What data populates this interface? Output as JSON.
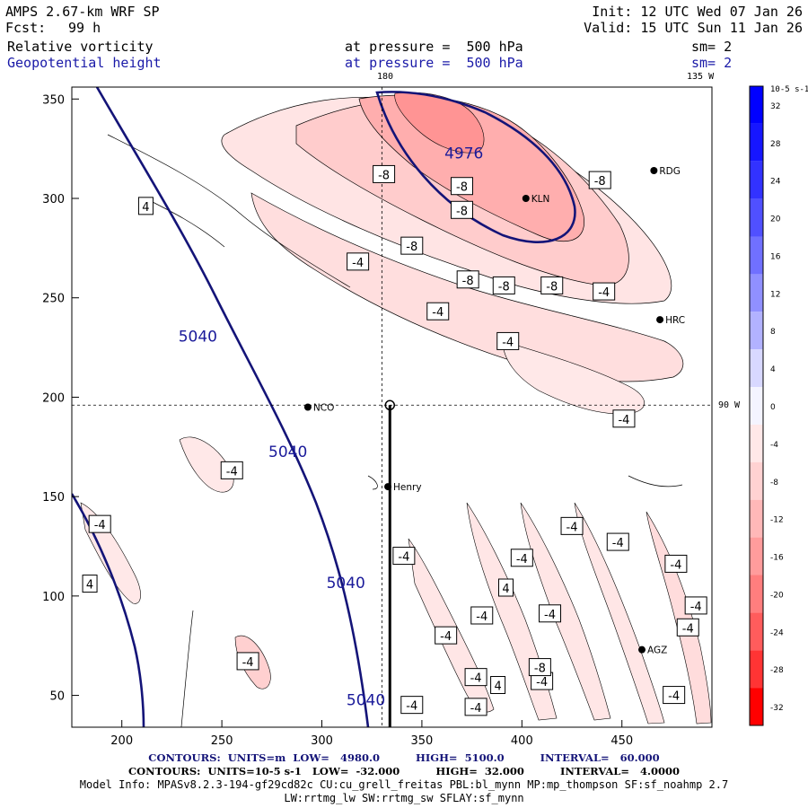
{
  "header": {
    "title": "AMPS 2.67-km WRF SP",
    "init": "Init: 12 UTC Wed 07 Jan 26",
    "fcst_label": "Fcst:",
    "fcst_value": "99 h",
    "valid": "Valid: 15 UTC Sun 11 Jan 26",
    "field1": "Relative vorticity",
    "field1_level": "at pressure =  500 hPa",
    "field1_sm": "sm= 2",
    "field2": "Geopotential height",
    "field2_level": "at pressure =  500 hPa",
    "field2_sm": "sm= 2"
  },
  "map_labels": {
    "lon_180": "180",
    "lon_135w": "135 W",
    "lat_90w": "90 W"
  },
  "stations": [
    {
      "name": "RDG",
      "x": 466,
      "y": 314
    },
    {
      "name": "KLN",
      "x": 402,
      "y": 300
    },
    {
      "name": "HRC",
      "x": 469,
      "y": 239
    },
    {
      "name": "NCO",
      "x": 293,
      "y": 195
    },
    {
      "name": "Henry",
      "x": 333,
      "y": 155
    },
    {
      "name": "AGZ",
      "x": 460,
      "y": 73
    }
  ],
  "colorbar": {
    "unit": "10-5 s-1",
    "levels": [
      32,
      28,
      24,
      20,
      16,
      12,
      8,
      4,
      0,
      -4,
      -8,
      -12,
      -16,
      -20,
      -24,
      -28,
      -32
    ],
    "colors": [
      "#0000ff",
      "#1616ff",
      "#3232ff",
      "#5050ff",
      "#7070ff",
      "#9090ff",
      "#b2b2ff",
      "#d8d8ff",
      "#f4f4ff",
      "#ffe8e8",
      "#ffd2d2",
      "#ffb8b8",
      "#ff9c9c",
      "#ff7e7e",
      "#ff5c5c",
      "#ff3434",
      "#ff0000"
    ]
  },
  "chart_data": {
    "type": "contour",
    "xlim": [
      175,
      495
    ],
    "ylim": [
      34,
      356
    ],
    "xticks": [
      200,
      250,
      300,
      350,
      400,
      450
    ],
    "yticks": [
      50,
      100,
      150,
      200,
      250,
      300,
      350
    ],
    "cross_section": {
      "x": 334,
      "y0": 34,
      "y1": 196
    },
    "crosshair": {
      "x": 330,
      "y": 196
    },
    "height_contour_labels": [
      {
        "text": "4976",
        "x": 371,
        "y": 320
      },
      {
        "text": "5040",
        "x": 238,
        "y": 228
      },
      {
        "text": "5040",
        "x": 283,
        "y": 170
      },
      {
        "text": "5040",
        "x": 312,
        "y": 104
      },
      {
        "text": "5040",
        "x": 322,
        "y": 45
      }
    ],
    "vorticity_contour_labels": [
      {
        "text": "4",
        "x": 212,
        "y": 296
      },
      {
        "text": "-8",
        "x": 331,
        "y": 312
      },
      {
        "text": "-8",
        "x": 370,
        "y": 306
      },
      {
        "text": "-8",
        "x": 370,
        "y": 294
      },
      {
        "text": "-8",
        "x": 439,
        "y": 309
      },
      {
        "text": "-4",
        "x": 318,
        "y": 268
      },
      {
        "text": "-8",
        "x": 345,
        "y": 276
      },
      {
        "text": "-8",
        "x": 373,
        "y": 259
      },
      {
        "text": "-8",
        "x": 391,
        "y": 256
      },
      {
        "text": "-8",
        "x": 415,
        "y": 256
      },
      {
        "text": "-4",
        "x": 441,
        "y": 253
      },
      {
        "text": "-4",
        "x": 358,
        "y": 243
      },
      {
        "text": "-4",
        "x": 393,
        "y": 228
      },
      {
        "text": "-4",
        "x": 451,
        "y": 189
      },
      {
        "text": "-4",
        "x": 255,
        "y": 163
      },
      {
        "text": "-4",
        "x": 189,
        "y": 136
      },
      {
        "text": "4",
        "x": 184,
        "y": 106
      },
      {
        "text": "-4",
        "x": 341,
        "y": 120
      },
      {
        "text": "-4",
        "x": 425,
        "y": 135
      },
      {
        "text": "-4",
        "x": 400,
        "y": 119
      },
      {
        "text": "-4",
        "x": 448,
        "y": 127
      },
      {
        "text": "-4",
        "x": 477,
        "y": 116
      },
      {
        "text": "4",
        "x": 392,
        "y": 104
      },
      {
        "text": "-4",
        "x": 380,
        "y": 90
      },
      {
        "text": "-4",
        "x": 414,
        "y": 91
      },
      {
        "text": "-4",
        "x": 487,
        "y": 95
      },
      {
        "text": "-4",
        "x": 483,
        "y": 84
      },
      {
        "text": "-4",
        "x": 362,
        "y": 80
      },
      {
        "text": "-4",
        "x": 263,
        "y": 67
      },
      {
        "text": "-4",
        "x": 377,
        "y": 59
      },
      {
        "text": "4",
        "x": 388,
        "y": 55
      },
      {
        "text": "-4",
        "x": 410,
        "y": 57
      },
      {
        "text": "-4",
        "x": 476,
        "y": 50
      },
      {
        "text": "-8",
        "x": 409,
        "y": 64
      },
      {
        "text": "-4",
        "x": 345,
        "y": 45
      },
      {
        "text": "-4",
        "x": 377,
        "y": 44
      }
    ]
  },
  "footer": {
    "line1": "CONTOURS:  UNITS=m  LOW=   4980.0          HIGH=  5100.0          INTERVAL=   60.000",
    "line2": "CONTOURS:  UNITS=10-5 s-1   LOW=  -32.000          HIGH=  32.000          INTERVAL=   4.0000",
    "line3": "Model Info: MPASv8.2.3-194-gf29cd82c CU:cu_grell_freitas PBL:bl_mynn MP:mp_thompson SF:sf_noahmp 2.7",
    "line4": "LW:rrtmg_lw SW:rrtmg_sw SFLAY:sf_mynn"
  }
}
